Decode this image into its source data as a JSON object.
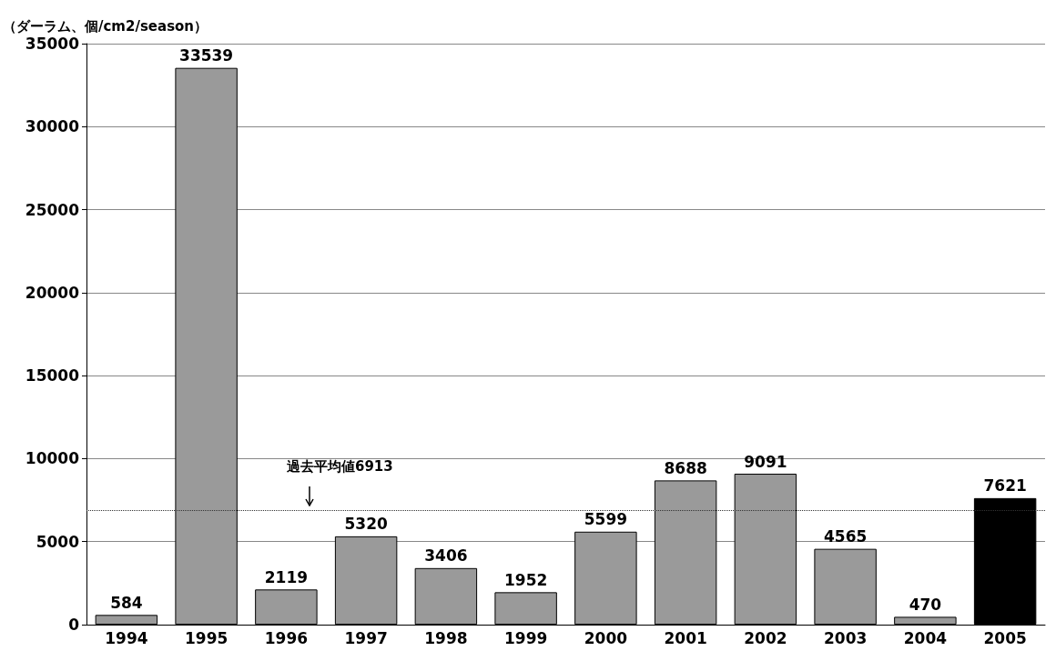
{
  "chart_data": {
    "type": "bar",
    "ylabel": "（ダーラム、個/cm2/season）",
    "categories": [
      "1994",
      "1995",
      "1996",
      "1997",
      "1998",
      "1999",
      "2000",
      "2001",
      "2002",
      "2003",
      "2004",
      "2005"
    ],
    "values": [
      584,
      33539,
      2119,
      5320,
      3406,
      1952,
      5599,
      8688,
      9091,
      4565,
      470,
      7621
    ],
    "colors": [
      "#9a9a9a",
      "#9a9a9a",
      "#9a9a9a",
      "#9a9a9a",
      "#9a9a9a",
      "#9a9a9a",
      "#9a9a9a",
      "#9a9a9a",
      "#9a9a9a",
      "#9a9a9a",
      "#9a9a9a",
      "#000000"
    ],
    "ylim": [
      0,
      35000
    ],
    "yticks": [
      0,
      5000,
      10000,
      15000,
      20000,
      25000,
      30000,
      35000
    ],
    "grid": "y",
    "data_labels": true,
    "ref_lines": [
      {
        "axis": "y",
        "value": 6913,
        "label": "過去平均値6913",
        "line_style": "dotted",
        "color": "#333333"
      }
    ]
  }
}
